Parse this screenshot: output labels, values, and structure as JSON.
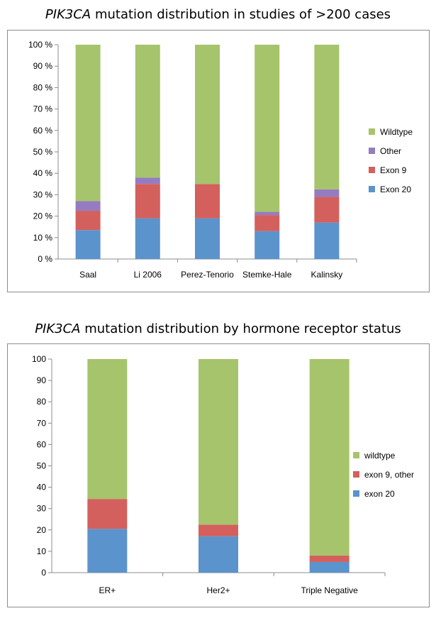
{
  "chart_data": [
    {
      "type": "bar",
      "stacked": true,
      "title_emph": "PIK3CA",
      "title_rest": " mutation distribution in studies of >200 cases",
      "categories": [
        "Saal",
        "Li 2006",
        "Perez-Tenorio",
        "Stemke-Hale",
        "Kalinsky"
      ],
      "ylim": [
        0,
        100
      ],
      "yticks": [
        "0 %",
        "10 %",
        "20 %",
        "30 %",
        "40 %",
        "50 %",
        "60 %",
        "70 %",
        "80 %",
        "90 %",
        "100 %"
      ],
      "grid": false,
      "legend_position": "right",
      "series": [
        {
          "name": "Exon 20",
          "color": "#5b93cd",
          "values": [
            13.5,
            19,
            19,
            13,
            17
          ]
        },
        {
          "name": "Exon 9",
          "color": "#d3605c",
          "values": [
            9,
            16,
            16,
            7.5,
            12
          ]
        },
        {
          "name": "Other",
          "color": "#957cc0",
          "values": [
            4.5,
            3,
            0,
            1.5,
            3.5
          ]
        },
        {
          "name": "Wildtype",
          "color": "#a6c46c",
          "values": [
            73,
            62,
            65,
            78,
            67.5
          ]
        }
      ]
    },
    {
      "type": "bar",
      "stacked": true,
      "title_emph": "PIK3CA",
      "title_rest": " mutation distribution by hormone receptor status",
      "categories": [
        "ER+",
        "Her2+",
        "Triple Negative"
      ],
      "ylim": [
        0,
        100
      ],
      "yticks": [
        "0",
        "10",
        "20",
        "30",
        "40",
        "50",
        "60",
        "70",
        "80",
        "90",
        "100"
      ],
      "grid": false,
      "legend_position": "right",
      "series": [
        {
          "name": "exon 20",
          "color": "#5b93cd",
          "values": [
            20.5,
            17,
            5
          ]
        },
        {
          "name": "exon 9, other",
          "color": "#d3605c",
          "values": [
            14,
            5.5,
            3
          ]
        },
        {
          "name": "wildtype",
          "color": "#a6c46c",
          "values": [
            65.5,
            77.5,
            92
          ]
        }
      ]
    }
  ]
}
